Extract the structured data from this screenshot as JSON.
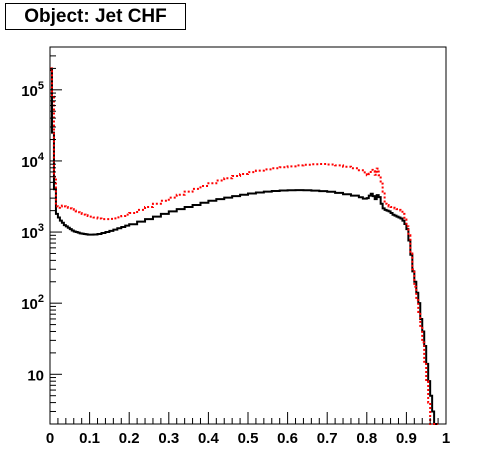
{
  "title": "Object: Jet CHF",
  "chart_data": {
    "type": "line",
    "title": "Object: Jet CHF",
    "xlabel": "",
    "ylabel": "",
    "x_range": [
      0,
      1
    ],
    "y_range": [
      2,
      400000
    ],
    "y_scale": "log",
    "x_tick_labels": [
      "0",
      "0.1",
      "0.2",
      "0.3",
      "0.4",
      "0.5",
      "0.6",
      "0.7",
      "0.8",
      "0.9",
      "1"
    ],
    "y_tick_labels": [
      {
        "value": 10,
        "base": "10",
        "exp": ""
      },
      {
        "value": 100,
        "base": "10",
        "exp": "2"
      },
      {
        "value": 1000,
        "base": "10",
        "exp": "3"
      },
      {
        "value": 10000,
        "base": "10",
        "exp": "4"
      },
      {
        "value": 100000,
        "base": "10",
        "exp": "5"
      }
    ],
    "grid": false,
    "legend": "none",
    "series": [
      {
        "color": "#000000",
        "style": "solid-step",
        "x": [
          0.0,
          0.005,
          0.01,
          0.015,
          0.02,
          0.025,
          0.03,
          0.035,
          0.04,
          0.045,
          0.05,
          0.055,
          0.06,
          0.065,
          0.07,
          0.075,
          0.08,
          0.085,
          0.09,
          0.095,
          0.1,
          0.11,
          0.12,
          0.13,
          0.14,
          0.15,
          0.16,
          0.17,
          0.18,
          0.19,
          0.2,
          0.22,
          0.24,
          0.26,
          0.28,
          0.3,
          0.32,
          0.34,
          0.36,
          0.38,
          0.4,
          0.42,
          0.44,
          0.46,
          0.48,
          0.5,
          0.52,
          0.54,
          0.56,
          0.58,
          0.6,
          0.62,
          0.64,
          0.66,
          0.68,
          0.7,
          0.72,
          0.74,
          0.76,
          0.78,
          0.79,
          0.8,
          0.805,
          0.81,
          0.815,
          0.82,
          0.825,
          0.83,
          0.835,
          0.84,
          0.845,
          0.85,
          0.855,
          0.86,
          0.865,
          0.87,
          0.875,
          0.88,
          0.885,
          0.89,
          0.895,
          0.9,
          0.905,
          0.91,
          0.915,
          0.92,
          0.925,
          0.93,
          0.935,
          0.94,
          0.945,
          0.95,
          0.955,
          0.96,
          0.965,
          0.97,
          0.975
        ],
        "y": [
          190000,
          25000,
          4000,
          1800,
          1600,
          1450,
          1350,
          1250,
          1200,
          1150,
          1100,
          1050,
          1020,
          1000,
          980,
          960,
          950,
          940,
          930,
          920,
          920,
          925,
          940,
          970,
          1000,
          1040,
          1080,
          1130,
          1180,
          1230,
          1290,
          1400,
          1520,
          1650,
          1800,
          1950,
          2100,
          2250,
          2400,
          2580,
          2750,
          2900,
          3050,
          3200,
          3350,
          3480,
          3600,
          3700,
          3780,
          3840,
          3870,
          3880,
          3870,
          3830,
          3760,
          3680,
          3560,
          3400,
          3250,
          3080,
          2950,
          3000,
          3250,
          3450,
          3200,
          2900,
          3300,
          3100,
          2500,
          2150,
          2050,
          2000,
          1950,
          1850,
          1750,
          1700,
          1650,
          1600,
          1550,
          1450,
          1300,
          1100,
          760,
          480,
          280,
          200,
          140,
          100,
          60,
          40,
          25,
          14,
          8,
          5,
          3,
          2,
          2
        ]
      },
      {
        "color": "#ff0000",
        "style": "dotted-step",
        "x": [
          0.0,
          0.005,
          0.01,
          0.015,
          0.02,
          0.025,
          0.03,
          0.035,
          0.04,
          0.045,
          0.05,
          0.055,
          0.06,
          0.065,
          0.07,
          0.075,
          0.08,
          0.085,
          0.09,
          0.095,
          0.1,
          0.11,
          0.12,
          0.13,
          0.14,
          0.15,
          0.16,
          0.17,
          0.18,
          0.19,
          0.2,
          0.22,
          0.24,
          0.26,
          0.28,
          0.3,
          0.32,
          0.34,
          0.36,
          0.38,
          0.4,
          0.42,
          0.44,
          0.46,
          0.48,
          0.5,
          0.52,
          0.54,
          0.56,
          0.58,
          0.6,
          0.62,
          0.64,
          0.66,
          0.68,
          0.7,
          0.72,
          0.74,
          0.76,
          0.78,
          0.79,
          0.8,
          0.805,
          0.81,
          0.815,
          0.82,
          0.825,
          0.83,
          0.835,
          0.84,
          0.845,
          0.85,
          0.855,
          0.86,
          0.865,
          0.87,
          0.875,
          0.88,
          0.885,
          0.89,
          0.895,
          0.9,
          0.905,
          0.91,
          0.915,
          0.92,
          0.925,
          0.93,
          0.935,
          0.94,
          0.945,
          0.95,
          0.955,
          0.96,
          0.965,
          0.97,
          0.975
        ],
        "y": [
          200000,
          80000,
          6000,
          2300,
          2200,
          2300,
          2350,
          2300,
          2250,
          2200,
          2150,
          2100,
          2000,
          1950,
          1900,
          1850,
          1800,
          1760,
          1720,
          1680,
          1650,
          1600,
          1550,
          1520,
          1520,
          1530,
          1560,
          1610,
          1680,
          1760,
          1850,
          2050,
          2250,
          2500,
          2750,
          3050,
          3350,
          3700,
          4050,
          4450,
          4850,
          5300,
          5700,
          6150,
          6550,
          6950,
          7300,
          7600,
          7900,
          8150,
          8400,
          8650,
          8850,
          9000,
          9050,
          8900,
          8650,
          8300,
          7900,
          7400,
          6900,
          6300,
          6600,
          7500,
          7200,
          6400,
          7800,
          6300,
          4800,
          3700,
          2500,
          2400,
          2300,
          2250,
          2200,
          2150,
          2100,
          2050,
          2000,
          1800,
          1500,
          1200,
          900,
          500,
          300,
          170,
          110,
          75,
          45,
          28,
          15,
          8,
          4,
          2,
          2,
          2,
          2
        ]
      }
    ]
  }
}
